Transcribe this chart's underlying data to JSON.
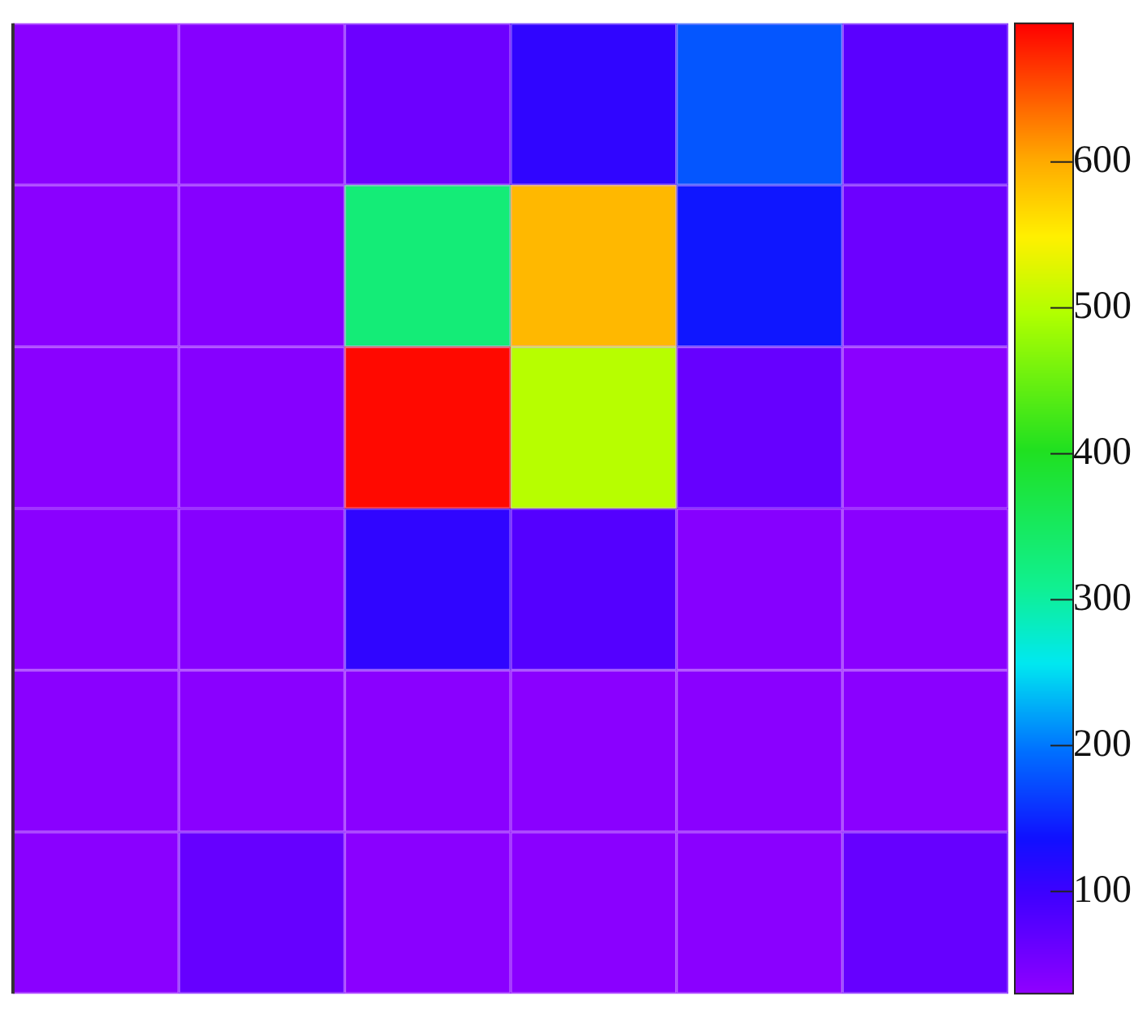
{
  "chart_data": {
    "type": "heatmap",
    "categories": [
      null,
      null,
      null,
      null,
      null,
      null
    ],
    "y_categories": [
      null,
      null,
      null,
      null,
      null,
      null
    ],
    "cells": [
      [
        35,
        38,
        60,
        110,
        180,
        75
      ],
      [
        35,
        38,
        330,
        590,
        140,
        60
      ],
      [
        35,
        38,
        690,
        500,
        65,
        35
      ],
      [
        35,
        38,
        110,
        80,
        38,
        35
      ],
      [
        35,
        35,
        35,
        35,
        35,
        35
      ],
      [
        35,
        65,
        35,
        35,
        35,
        65
      ]
    ],
    "clim": [
      30,
      695
    ],
    "cticks": [
      100,
      200,
      300,
      400,
      500,
      600
    ],
    "tick_labels": false
  }
}
